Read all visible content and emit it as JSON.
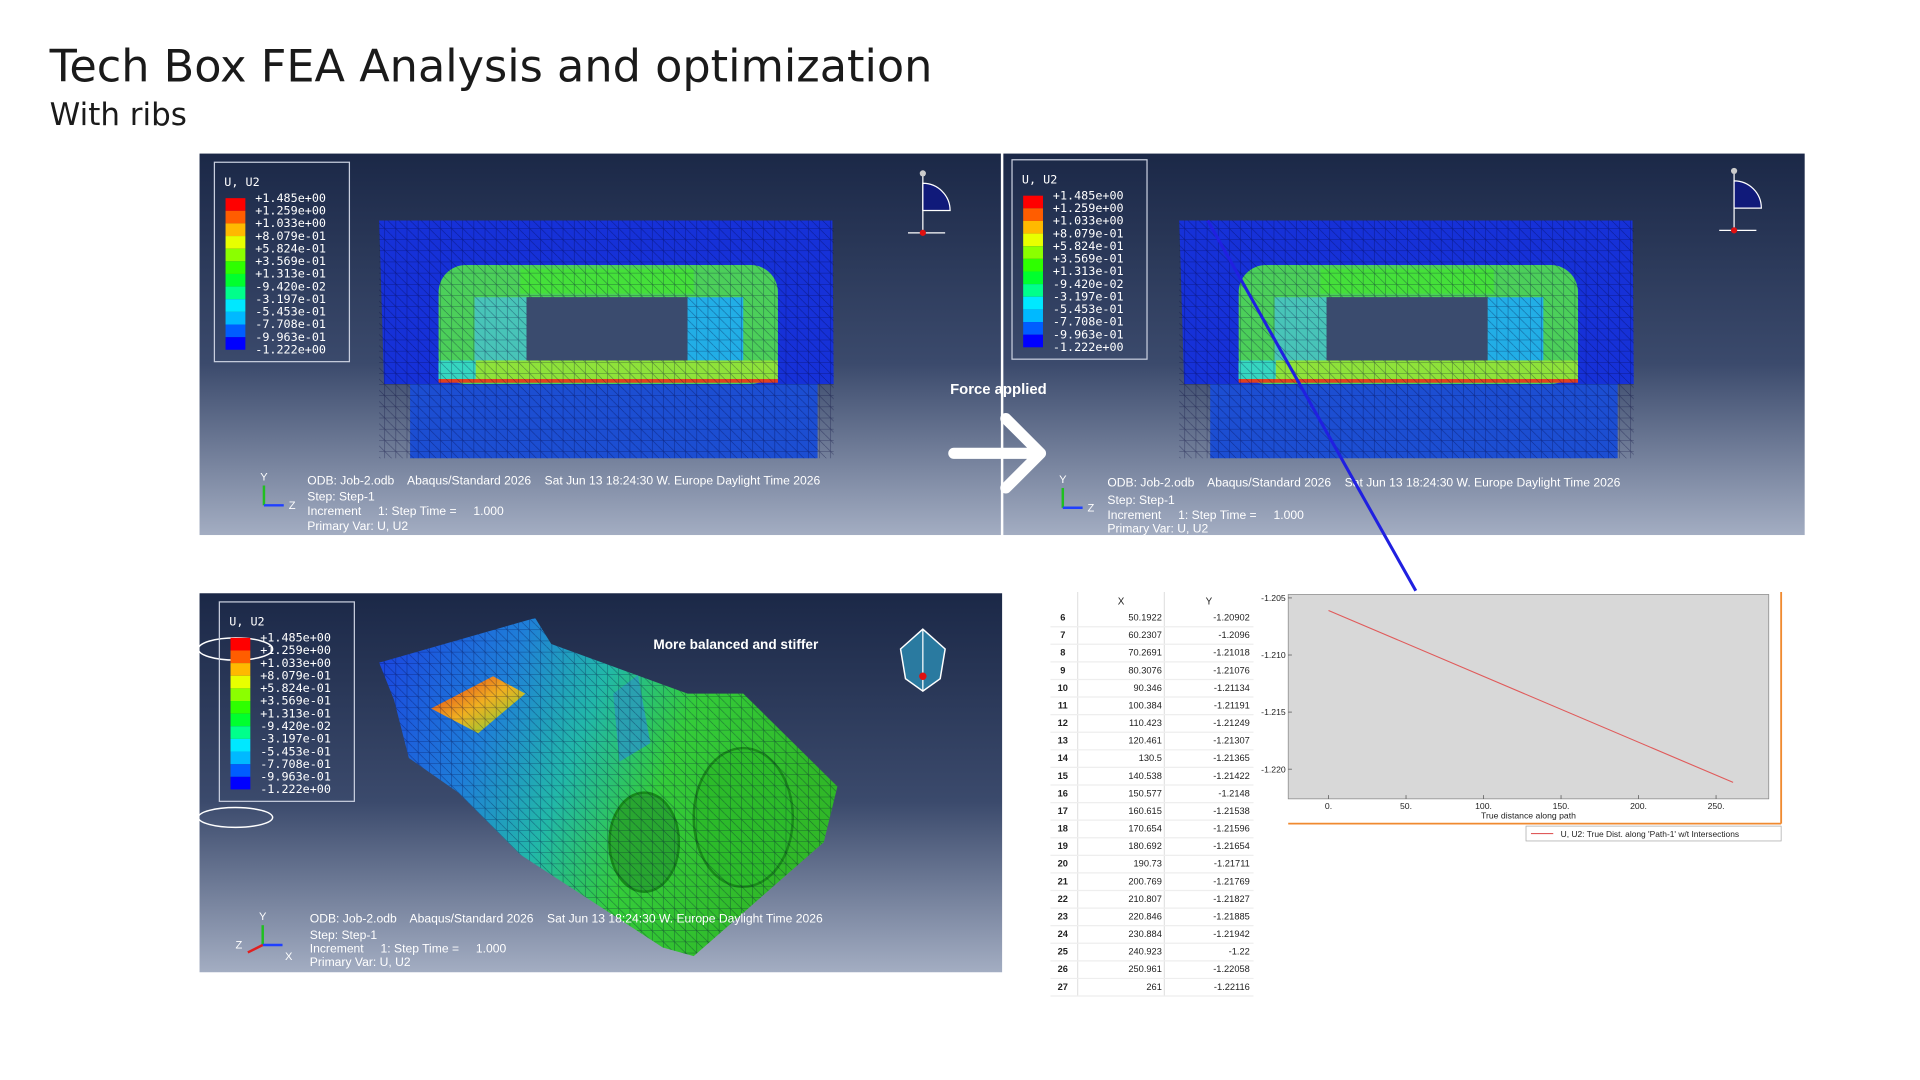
{
  "header": {
    "title": "Tech Box FEA Analysis and optimization",
    "subtitle": "With ribs"
  },
  "annotations": {
    "force": "Force applied",
    "result": "More balanced and stiffer"
  },
  "panels": [
    {
      "legend_title": "U, U2",
      "legend_labels": [
        "+1.485e+00",
        "+1.259e+00",
        "+1.033e+00",
        "+8.079e-01",
        "+5.824e-01",
        "+3.569e-01",
        "+1.313e-01",
        "-9.420e-02",
        "-3.197e-01",
        "-5.453e-01",
        "-7.708e-01",
        "-9.963e-01",
        "-1.222e+00"
      ],
      "info": [
        "ODB: Job-2.odb    Abaqus/Standard 2026    Sat Jun 13 18:24:30 W. Europe Daylight Time 2026",
        "Step: Step-1",
        "Increment     1: Step Time =     1.000",
        "Primary Var: U, U2"
      ],
      "triad": [
        "Y",
        "Z"
      ]
    },
    {
      "legend_title": "U, U2",
      "legend_labels": [
        "+1.485e+00",
        "+1.259e+00",
        "+1.033e+00",
        "+8.079e-01",
        "+5.824e-01",
        "+3.569e-01",
        "+1.313e-01",
        "-9.420e-02",
        "-3.197e-01",
        "-5.453e-01",
        "-7.708e-01",
        "-9.963e-01",
        "-1.222e+00"
      ],
      "info": [
        "ODB: Job-2.odb    Abaqus/Standard 2026    Sat Jun 13 18:24:30 W. Europe Daylight Time 2026",
        "Step: Step-1",
        "Increment     1: Step Time =     1.000",
        "Primary Var: U, U2"
      ],
      "triad": [
        "Y",
        "Z"
      ]
    },
    {
      "legend_title": "U, U2",
      "legend_labels": [
        "+1.485e+00",
        "+1.259e+00",
        "+1.033e+00",
        "+8.079e-01",
        "+5.824e-01",
        "+3.569e-01",
        "+1.313e-01",
        "-9.420e-02",
        "-3.197e-01",
        "-5.453e-01",
        "-7.708e-01",
        "-9.963e-01",
        "-1.222e+00"
      ],
      "info": [
        "ODB: Job-2.odb    Abaqus/Standard 2026    Sat Jun 13 18:24:30 W. Europe Daylight Time 2026",
        "Step: Step-1",
        "Increment     1: Step Time =     1.000",
        "Primary Var: U, U2"
      ],
      "triad": [
        "Y",
        "Z",
        "X"
      ]
    }
  ],
  "table": {
    "header": [
      "X",
      "Y"
    ],
    "rows": [
      [
        6,
        50.1922,
        -1.20902
      ],
      [
        7,
        60.2307,
        -1.2096
      ],
      [
        8,
        70.2691,
        -1.21018
      ],
      [
        9,
        80.3076,
        -1.21076
      ],
      [
        10,
        90.346,
        -1.21134
      ],
      [
        11,
        100.384,
        -1.21191
      ],
      [
        12,
        110.423,
        -1.21249
      ],
      [
        13,
        120.461,
        -1.21307
      ],
      [
        14,
        130.5,
        -1.21365
      ],
      [
        15,
        140.538,
        -1.21422
      ],
      [
        16,
        150.577,
        -1.2148
      ],
      [
        17,
        160.615,
        -1.21538
      ],
      [
        18,
        170.654,
        -1.21596
      ],
      [
        19,
        180.692,
        -1.21654
      ],
      [
        20,
        190.73,
        -1.21711
      ],
      [
        21,
        200.769,
        -1.21769
      ],
      [
        22,
        210.807,
        -1.21827
      ],
      [
        23,
        220.846,
        -1.21885
      ],
      [
        24,
        230.884,
        -1.21942
      ],
      [
        25,
        240.923,
        -1.22
      ],
      [
        26,
        250.961,
        -1.22058
      ],
      [
        27,
        261,
        -1.22116
      ]
    ]
  },
  "chart_data": {
    "type": "line",
    "x_label": "True distance along path",
    "x": [
      0,
      261
    ],
    "series": [
      {
        "name": "U, U2: True Dist. along 'Path-1' w/t Intersections",
        "color": "#e05a5a",
        "values": [
          -1.2061,
          -1.22116
        ]
      }
    ],
    "xlim": [
      -26,
      284
    ],
    "ylim": [
      -1.2226,
      -1.2047
    ],
    "xticks": [
      {
        "value": 0,
        "label": "0."
      },
      {
        "value": 50,
        "label": "50."
      },
      {
        "value": 100,
        "label": "100."
      },
      {
        "value": 150,
        "label": "150."
      },
      {
        "value": 200,
        "label": "200."
      },
      {
        "value": 250,
        "label": "250."
      }
    ],
    "yticks": [
      -1.205,
      {
        "value": -1.21,
        "label": "-1.210"
      },
      -1.215,
      {
        "value": -1.22,
        "label": "-1.220"
      }
    ],
    "grid": false
  }
}
